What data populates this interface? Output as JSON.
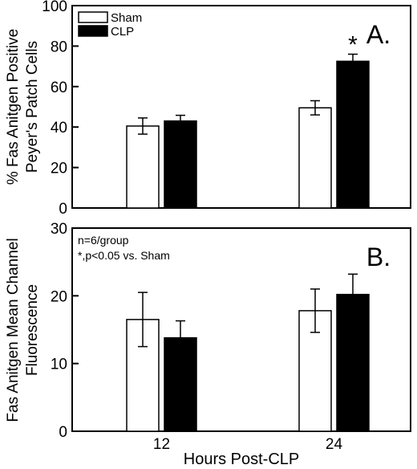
{
  "chart_data": [
    {
      "type": "bar",
      "panel_label": "A.",
      "categories": [
        "12",
        "24"
      ],
      "series": [
        {
          "name": "Sham",
          "values": [
            40.5,
            49.5
          ],
          "errors": [
            4.0,
            3.5
          ],
          "color": "#ffffff"
        },
        {
          "name": "CLP",
          "values": [
            43.0,
            72.5
          ],
          "errors": [
            2.8,
            3.5
          ],
          "color": "#000000"
        }
      ],
      "significance": [
        {
          "category": "24",
          "series": "CLP",
          "mark": "*"
        }
      ],
      "ylabel": [
        "% Fas Anitgen Positive",
        "Peyer's Patch Cells"
      ],
      "ylim": [
        0,
        100
      ],
      "yticks": [
        0,
        20,
        40,
        60,
        80,
        100
      ],
      "legend": {
        "placement": "top-left",
        "entries": [
          "Sham",
          "CLP"
        ]
      },
      "grid": false
    },
    {
      "type": "bar",
      "panel_label": "B.",
      "categories": [
        "12",
        "24"
      ],
      "series": [
        {
          "name": "Sham",
          "values": [
            16.5,
            17.8
          ],
          "errors": [
            4.0,
            3.2
          ],
          "color": "#ffffff"
        },
        {
          "name": "CLP",
          "values": [
            13.8,
            20.2
          ],
          "errors": [
            2.5,
            3.0
          ],
          "color": "#000000"
        }
      ],
      "annotations": [
        "n=6/group",
        "*,p<0.05 vs. Sham"
      ],
      "ylabel": [
        "Fas Anitgen Mean Channel",
        "Fluorescence"
      ],
      "ylim": [
        0,
        30
      ],
      "yticks": [
        0,
        10,
        20,
        30
      ],
      "xlabel": "Hours Post-CLP",
      "grid": false
    }
  ]
}
